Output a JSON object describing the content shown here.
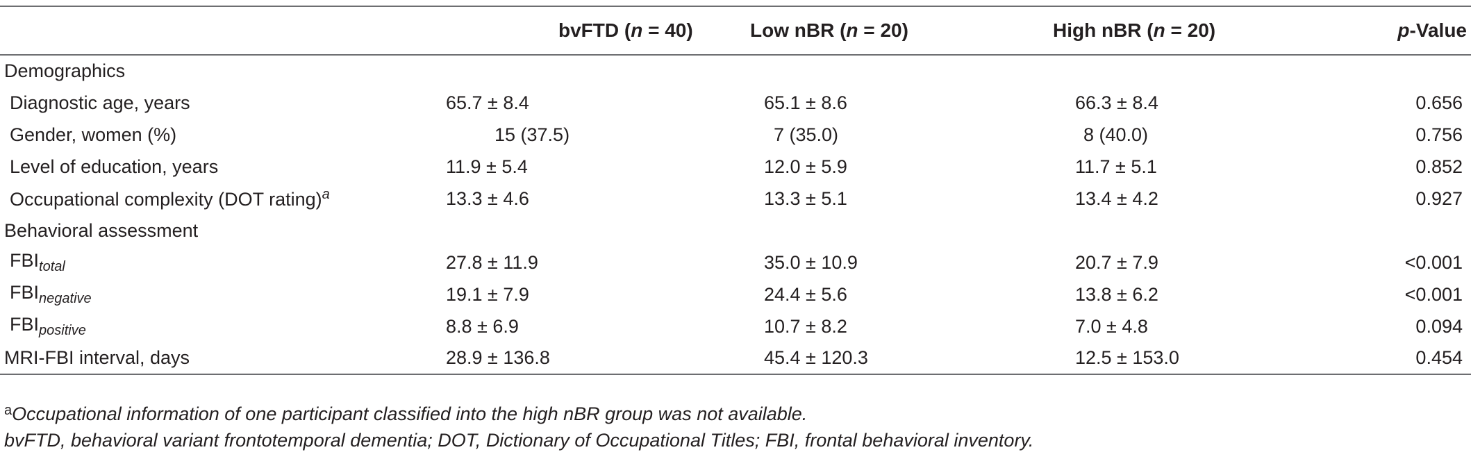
{
  "header": {
    "col1": {
      "prefix": "bvFTD (",
      "n": "n",
      "suffix": " = 40)"
    },
    "col2": {
      "prefix": "Low nBR (",
      "n": "n",
      "suffix": " = 20)"
    },
    "col3": {
      "prefix": "High nBR (",
      "n": "n",
      "suffix": " = 20)"
    },
    "col4": {
      "p": "p",
      "suffix": "-Value"
    }
  },
  "sections": {
    "demographics": "Demographics",
    "behavioral": "Behavioral assessment"
  },
  "rows": {
    "age": {
      "label": "Diagnostic age, years",
      "all": "65.7 ± 8.4",
      "low": "65.1 ± 8.6",
      "high": "66.3 ± 8.4",
      "p": "0.656"
    },
    "gender": {
      "label": "Gender, women (%)",
      "all": "15 (37.5)",
      "low": "7 (35.0)",
      "high": "8 (40.0)",
      "p": "0.756"
    },
    "education": {
      "label": "Level of education, years",
      "all": "11.9 ± 5.4",
      "low": "12.0 ± 5.9",
      "high": "11.7 ± 5.1",
      "p": "0.852"
    },
    "occupation": {
      "label": "Occupational complexity (DOT rating)",
      "sup": "a",
      "all": "13.3 ± 4.6",
      "low": "13.3 ± 5.1",
      "high": "13.4 ± 4.2",
      "p": "0.927"
    },
    "fbi_total": {
      "label": "FBI",
      "sub": "total",
      "all": "27.8 ± 11.9",
      "low": "35.0 ± 10.9",
      "high": "20.7 ± 7.9",
      "p": "<0.001"
    },
    "fbi_negative": {
      "label": "FBI",
      "sub": "negative",
      "all": "19.1 ± 7.9",
      "low": "24.4 ± 5.6",
      "high": "13.8 ± 6.2",
      "p": "<0.001"
    },
    "fbi_positive": {
      "label": "FBI",
      "sub": "positive",
      "all": "8.8 ± 6.9",
      "low": "10.7 ± 8.2",
      "high": "7.0 ± 4.8",
      "p": "0.094"
    },
    "mri_interval": {
      "label": "MRI-FBI interval, days",
      "all": "28.9 ± 136.8",
      "low": "45.4 ± 120.3",
      "high": "12.5 ± 153.0",
      "p": "0.454"
    }
  },
  "notes": {
    "footnote_mark": "a",
    "footnote": "Occupational information of one participant classified into the high nBR group was not available.",
    "abbreviations": "bvFTD, behavioral variant frontotemporal dementia; DOT, Dictionary of Occupational Titles; FBI, frontal behavioral inventory."
  }
}
